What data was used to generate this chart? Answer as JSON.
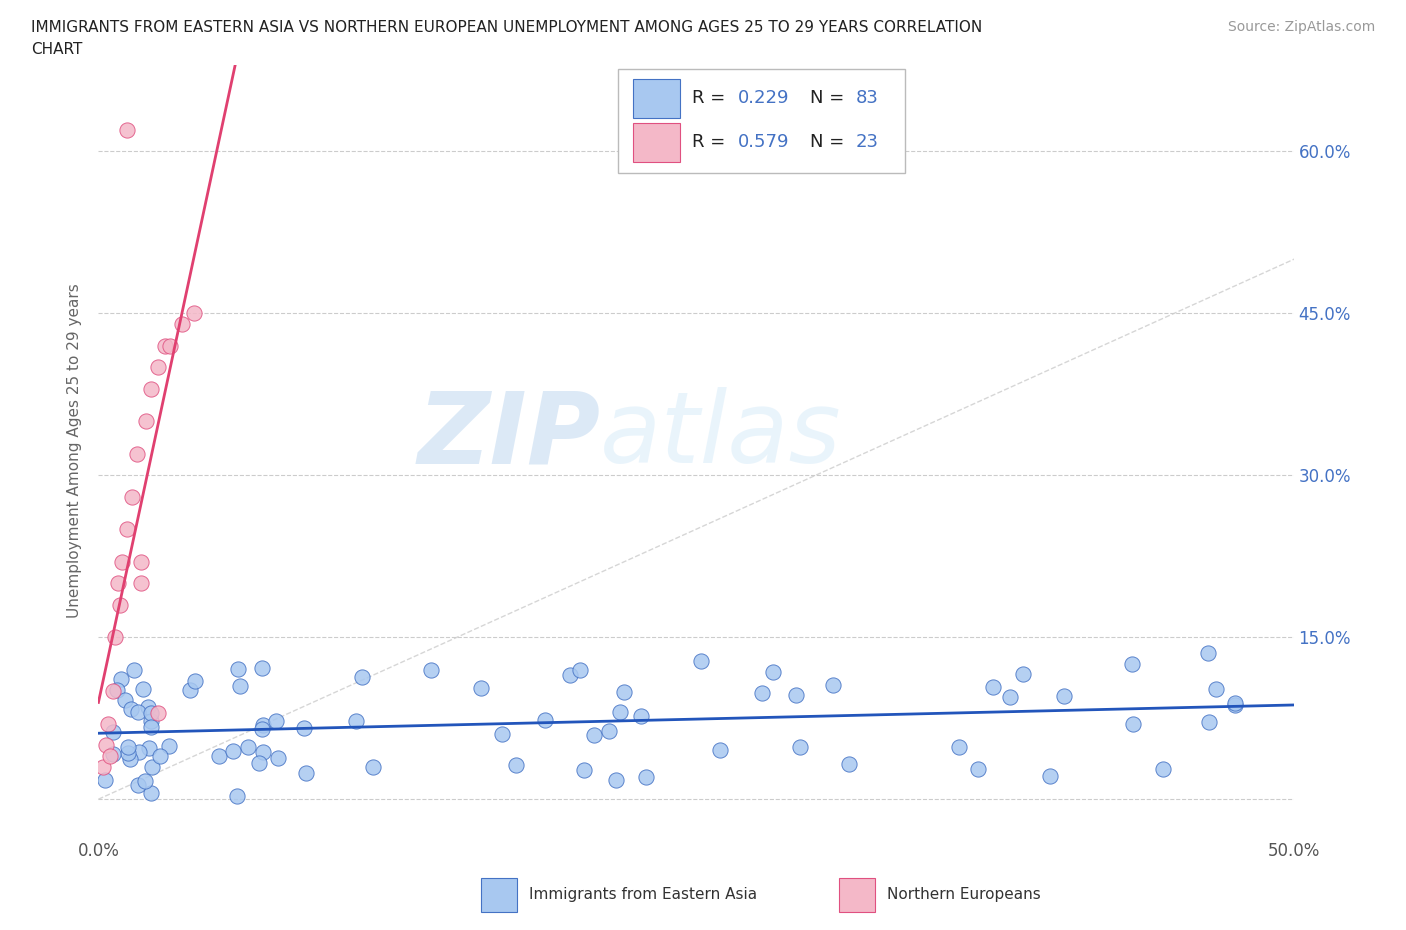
{
  "title_line1": "IMMIGRANTS FROM EASTERN ASIA VS NORTHERN EUROPEAN UNEMPLOYMENT AMONG AGES 25 TO 29 YEARS CORRELATION",
  "title_line2": "CHART",
  "source": "Source: ZipAtlas.com",
  "ylabel": "Unemployment Among Ages 25 to 29 years",
  "xlim": [
    0.0,
    0.5
  ],
  "ylim": [
    -0.035,
    0.68
  ],
  "color_eastern_asia_fill": "#a8c8f0",
  "color_eastern_asia_edge": "#4472c4",
  "color_northern_european_fill": "#f4b8c8",
  "color_northern_european_edge": "#e05080",
  "color_trend_ea": "#2255bb",
  "color_trend_ne": "#e04070",
  "color_diag": "#cccccc",
  "watermark_zip_color": "#b8d8f0",
  "watermark_atlas_color": "#c8e0f8",
  "legend_R_color": "#000000",
  "legend_N_color": "#4472c4",
  "legend_val_color": "#4472c4"
}
